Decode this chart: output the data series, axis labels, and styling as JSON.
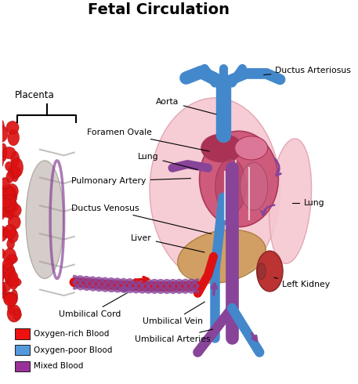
{
  "title": "Fetal Circulation",
  "title_fontsize": 14,
  "title_fontweight": "bold",
  "bg_color": "#ffffff",
  "legend_items": [
    {
      "color": "#ee1111",
      "label": "Oxygen-rich Blood"
    },
    {
      "color": "#5599dd",
      "label": "Oxygen-poor Blood"
    },
    {
      "color": "#993399",
      "label": "Mixed Blood"
    }
  ],
  "colors": {
    "red": "#dd1111",
    "blue": "#4488cc",
    "purple": "#884499",
    "purple_dark": "#662288",
    "heart_main": "#cc5577",
    "heart_dark": "#aa3355",
    "heart_light": "#dd88aa",
    "lung": "#f5c8d0",
    "lung_edge": "#e0a0b0",
    "liver": "#cc9955",
    "liver_edge": "#aa7733",
    "kidney": "#bb3333",
    "kidney_edge": "#882222",
    "placenta_gray": "#b0a8a4",
    "placenta_gray2": "#d0c8c4",
    "background": "#ffffff",
    "black": "#111111"
  }
}
